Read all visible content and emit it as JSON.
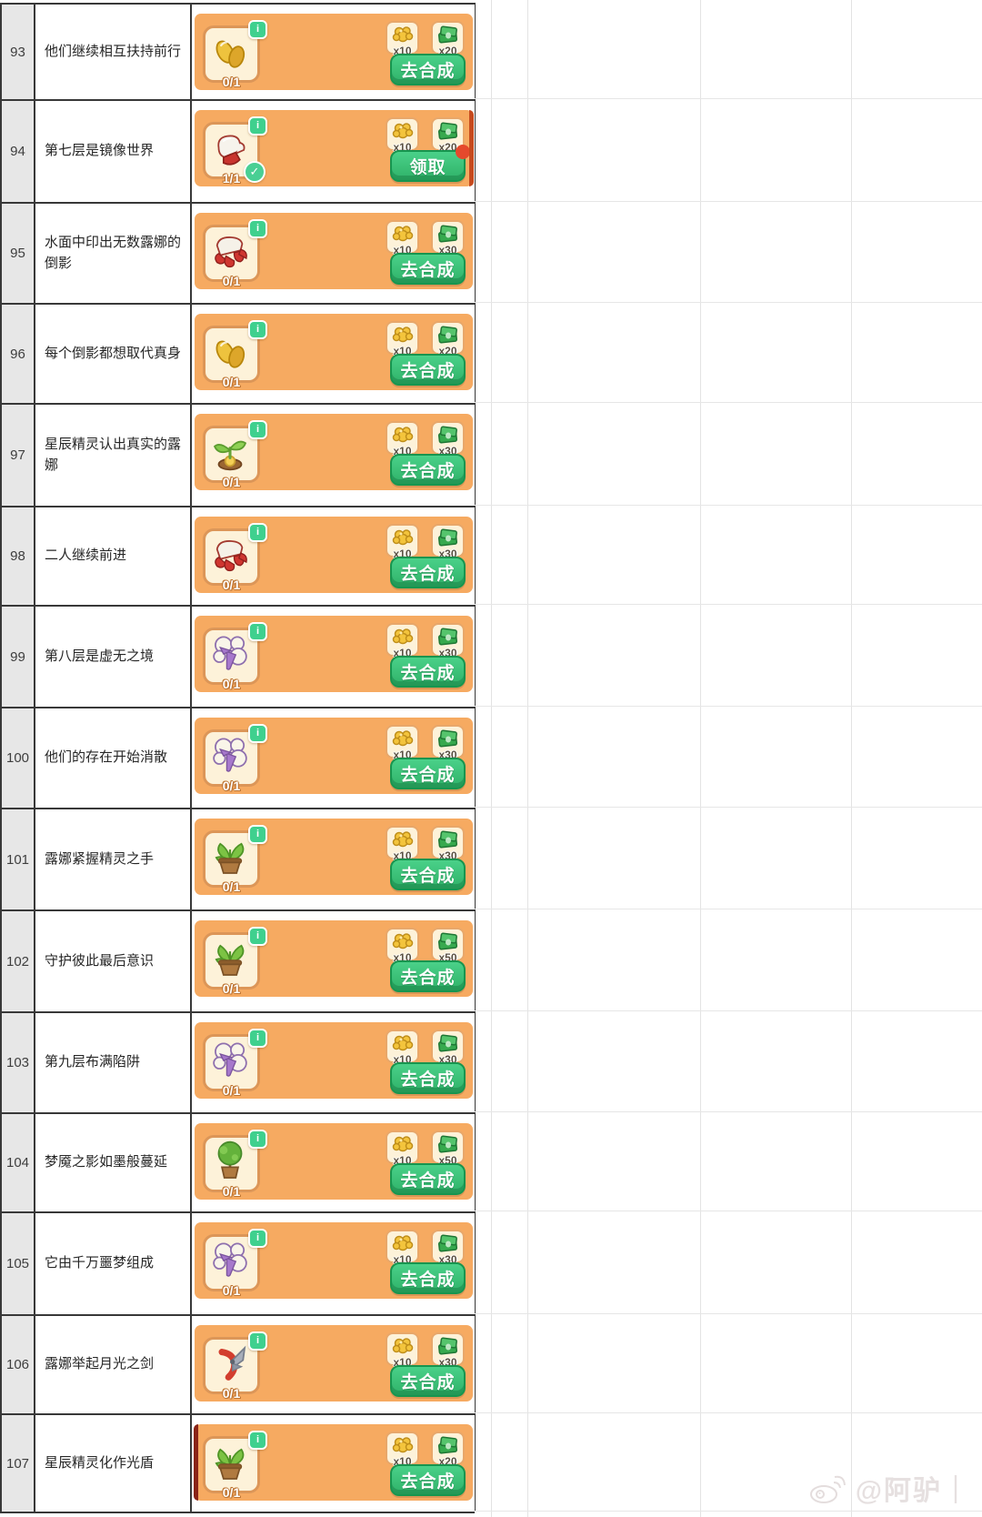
{
  "buttons": {
    "synthesize": "去合成",
    "claim": "领取"
  },
  "icons": {
    "info_glyph": "i",
    "check_glyph": "✓"
  },
  "colors": {
    "banner_orange": "#f6aa61",
    "slot_cream": "#fdf2d9",
    "slot_border": "#dc9658",
    "button_green": "#2fb168",
    "button_border": "#17954f",
    "info_green": "#3fd08e",
    "notify_red": "#e5492c",
    "grid_faint": "#e3e3e3",
    "table_border": "#383838",
    "header_gray": "#e7e7e7"
  },
  "watermark": {
    "handle": "@阿驴｜",
    "icon": "weibo-icon"
  },
  "rows": [
    {
      "num": "93",
      "label": "他们继续相互扶持前行",
      "item": "seeds",
      "count": "0/1",
      "coin": "x10",
      "money": "x20",
      "button": "去合成",
      "claimable": false,
      "completed": false,
      "strip": ""
    },
    {
      "num": "94",
      "label": "第七层是镜像世界",
      "item": "gloves",
      "count": "1/1",
      "coin": "x10",
      "money": "x20",
      "button": "领取",
      "claimable": true,
      "completed": true,
      "strip": "right"
    },
    {
      "num": "95",
      "label": "水面中印出无数露娜的倒影",
      "item": "red-glove",
      "count": "0/1",
      "coin": "x10",
      "money": "x30",
      "button": "去合成",
      "claimable": false,
      "completed": false,
      "strip": ""
    },
    {
      "num": "96",
      "label": "每个倒影都想取代真身",
      "item": "seeds",
      "count": "0/1",
      "coin": "x10",
      "money": "x20",
      "button": "去合成",
      "claimable": false,
      "completed": false,
      "strip": ""
    },
    {
      "num": "97",
      "label": "星辰精灵认出真实的露娜",
      "item": "sprout",
      "count": "0/1",
      "coin": "x10",
      "money": "x30",
      "button": "去合成",
      "claimable": false,
      "completed": false,
      "strip": ""
    },
    {
      "num": "98",
      "label": "二人继续前进",
      "item": "red-glove",
      "count": "0/1",
      "coin": "x10",
      "money": "x30",
      "button": "去合成",
      "claimable": false,
      "completed": false,
      "strip": ""
    },
    {
      "num": "99",
      "label": "第八层是虚无之境",
      "item": "nightmare-flower",
      "count": "0/1",
      "coin": "x10",
      "money": "x30",
      "button": "去合成",
      "claimable": false,
      "completed": false,
      "strip": ""
    },
    {
      "num": "100",
      "label": "他们的存在开始消散",
      "item": "nightmare-flower",
      "count": "0/1",
      "coin": "x10",
      "money": "x30",
      "button": "去合成",
      "claimable": false,
      "completed": false,
      "strip": ""
    },
    {
      "num": "101",
      "label": "露娜紧握精灵之手",
      "item": "potted-plant",
      "count": "0/1",
      "coin": "x10",
      "money": "x30",
      "button": "去合成",
      "claimable": false,
      "completed": false,
      "strip": ""
    },
    {
      "num": "102",
      "label": "守护彼此最后意识",
      "item": "potted-plant",
      "count": "0/1",
      "coin": "x10",
      "money": "x50",
      "button": "去合成",
      "claimable": false,
      "completed": false,
      "strip": ""
    },
    {
      "num": "103",
      "label": "第九层布满陷阱",
      "item": "nightmare-flower",
      "count": "0/1",
      "coin": "x10",
      "money": "x30",
      "button": "去合成",
      "claimable": false,
      "completed": false,
      "strip": ""
    },
    {
      "num": "104",
      "label": "梦魇之影如墨般蔓延",
      "item": "potted-tree",
      "count": "0/1",
      "coin": "x10",
      "money": "x50",
      "button": "去合成",
      "claimable": false,
      "completed": false,
      "strip": ""
    },
    {
      "num": "105",
      "label": "它由千万噩梦组成",
      "item": "nightmare-flower",
      "count": "0/1",
      "coin": "x10",
      "money": "x30",
      "button": "去合成",
      "claimable": false,
      "completed": false,
      "strip": ""
    },
    {
      "num": "106",
      "label": "露娜举起月光之剑",
      "item": "shears",
      "count": "0/1",
      "coin": "x10",
      "money": "x30",
      "button": "去合成",
      "claimable": false,
      "completed": false,
      "strip": ""
    },
    {
      "num": "107",
      "label": "星辰精灵化作光盾",
      "item": "potted-plant",
      "count": "0/1",
      "coin": "x10",
      "money": "x20",
      "button": "去合成",
      "claimable": false,
      "completed": false,
      "strip": "left"
    }
  ]
}
